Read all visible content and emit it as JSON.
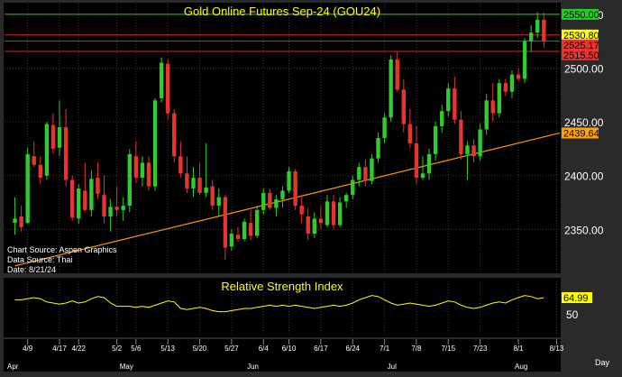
{
  "colors": {
    "background": "#000000",
    "frame": "#1f1f1f",
    "grid": "#3a3a3a",
    "up": "#2ecc2e",
    "down": "#e8342e",
    "axis_text": "#ffffff",
    "title": "#ffff00",
    "trendline": "#ff9900",
    "rsi_line": "#ffff00",
    "level_green": "#22cc22",
    "level_red": "#dd2222",
    "label_green_bg": "#22cc22",
    "label_yellow_bg": "#ffff00",
    "label_red_bg": "#e8342e",
    "label_orange_bg": "#ffa500"
  },
  "chart_data": [
    {
      "type": "candlestick",
      "title": "Gold Online Futures Sep-24 (GOU24)",
      "ylim": [
        2310,
        2560
      ],
      "y_ticks": [
        2350,
        2400,
        2450,
        2500,
        2550
      ],
      "y_tick_labels": [
        "2350.00",
        "2400.00",
        "2450.00",
        "2500.00",
        "2550.00"
      ],
      "grid": true,
      "horizontal_levels": [
        {
          "value": 2550.0,
          "label": "2550.00",
          "color": "green"
        },
        {
          "value": 2530.8,
          "label": "2530.80",
          "color": "yellow"
        },
        {
          "value": 2525.17,
          "label": "2525.17",
          "color": "red"
        },
        {
          "value": 2515.5,
          "label": "2515.50",
          "color": "red"
        }
      ],
      "trendline": {
        "start": [
          0,
          2316
        ],
        "end": [
          88,
          2439.64
        ],
        "label": "2439.64"
      },
      "info_lines": [
        "Chart Source: Aspen Graphics",
        "Data Source: Thai",
        "Date: 8/21/24"
      ],
      "candles": [
        {
          "o": 2356,
          "h": 2380,
          "l": 2345,
          "c": 2360
        },
        {
          "o": 2362,
          "h": 2372,
          "l": 2348,
          "c": 2352
        },
        {
          "o": 2356,
          "h": 2426,
          "l": 2355,
          "c": 2420
        },
        {
          "o": 2418,
          "h": 2432,
          "l": 2408,
          "c": 2410
        },
        {
          "o": 2410,
          "h": 2418,
          "l": 2392,
          "c": 2398
        },
        {
          "o": 2400,
          "h": 2450,
          "l": 2396,
          "c": 2448
        },
        {
          "o": 2447,
          "h": 2458,
          "l": 2420,
          "c": 2425
        },
        {
          "o": 2426,
          "h": 2470,
          "l": 2418,
          "c": 2445
        },
        {
          "o": 2445,
          "h": 2462,
          "l": 2390,
          "c": 2396
        },
        {
          "o": 2396,
          "h": 2400,
          "l": 2358,
          "c": 2361
        },
        {
          "o": 2360,
          "h": 2392,
          "l": 2355,
          "c": 2388
        },
        {
          "o": 2386,
          "h": 2412,
          "l": 2366,
          "c": 2368
        },
        {
          "o": 2368,
          "h": 2405,
          "l": 2362,
          "c": 2397
        },
        {
          "o": 2398,
          "h": 2412,
          "l": 2378,
          "c": 2383
        },
        {
          "o": 2382,
          "h": 2400,
          "l": 2356,
          "c": 2362
        },
        {
          "o": 2362,
          "h": 2378,
          "l": 2348,
          "c": 2371
        },
        {
          "o": 2371,
          "h": 2390,
          "l": 2362,
          "c": 2368
        },
        {
          "o": 2368,
          "h": 2380,
          "l": 2358,
          "c": 2372
        },
        {
          "o": 2372,
          "h": 2425,
          "l": 2366,
          "c": 2420
        },
        {
          "o": 2418,
          "h": 2432,
          "l": 2393,
          "c": 2398
        },
        {
          "o": 2398,
          "h": 2418,
          "l": 2390,
          "c": 2412
        },
        {
          "o": 2412,
          "h": 2418,
          "l": 2386,
          "c": 2390
        },
        {
          "o": 2390,
          "h": 2472,
          "l": 2386,
          "c": 2470
        },
        {
          "o": 2472,
          "h": 2510,
          "l": 2468,
          "c": 2505
        },
        {
          "o": 2504,
          "h": 2508,
          "l": 2452,
          "c": 2458
        },
        {
          "o": 2458,
          "h": 2462,
          "l": 2412,
          "c": 2418
        },
        {
          "o": 2418,
          "h": 2432,
          "l": 2398,
          "c": 2402
        },
        {
          "o": 2402,
          "h": 2418,
          "l": 2384,
          "c": 2388
        },
        {
          "o": 2388,
          "h": 2408,
          "l": 2380,
          "c": 2398
        },
        {
          "o": 2398,
          "h": 2412,
          "l": 2382,
          "c": 2384
        },
        {
          "o": 2384,
          "h": 2430,
          "l": 2380,
          "c": 2389
        },
        {
          "o": 2390,
          "h": 2396,
          "l": 2368,
          "c": 2372
        },
        {
          "o": 2372,
          "h": 2388,
          "l": 2362,
          "c": 2380
        },
        {
          "o": 2380,
          "h": 2382,
          "l": 2322,
          "c": 2333
        },
        {
          "o": 2334,
          "h": 2350,
          "l": 2330,
          "c": 2346
        },
        {
          "o": 2345,
          "h": 2352,
          "l": 2338,
          "c": 2341
        },
        {
          "o": 2341,
          "h": 2360,
          "l": 2339,
          "c": 2357
        },
        {
          "o": 2356,
          "h": 2368,
          "l": 2340,
          "c": 2344
        },
        {
          "o": 2344,
          "h": 2372,
          "l": 2342,
          "c": 2368
        },
        {
          "o": 2368,
          "h": 2388,
          "l": 2364,
          "c": 2384
        },
        {
          "o": 2384,
          "h": 2388,
          "l": 2368,
          "c": 2370
        },
        {
          "o": 2370,
          "h": 2382,
          "l": 2362,
          "c": 2378
        },
        {
          "o": 2378,
          "h": 2390,
          "l": 2370,
          "c": 2386
        },
        {
          "o": 2386,
          "h": 2408,
          "l": 2384,
          "c": 2404
        },
        {
          "o": 2404,
          "h": 2406,
          "l": 2368,
          "c": 2372
        },
        {
          "o": 2372,
          "h": 2382,
          "l": 2356,
          "c": 2364
        },
        {
          "o": 2362,
          "h": 2370,
          "l": 2340,
          "c": 2346
        },
        {
          "o": 2346,
          "h": 2366,
          "l": 2342,
          "c": 2360
        },
        {
          "o": 2360,
          "h": 2372,
          "l": 2350,
          "c": 2356
        },
        {
          "o": 2354,
          "h": 2382,
          "l": 2352,
          "c": 2376
        },
        {
          "o": 2376,
          "h": 2382,
          "l": 2350,
          "c": 2354
        },
        {
          "o": 2354,
          "h": 2380,
          "l": 2352,
          "c": 2375
        },
        {
          "o": 2376,
          "h": 2384,
          "l": 2370,
          "c": 2382
        },
        {
          "o": 2382,
          "h": 2400,
          "l": 2378,
          "c": 2396
        },
        {
          "o": 2396,
          "h": 2412,
          "l": 2390,
          "c": 2408
        },
        {
          "o": 2408,
          "h": 2415,
          "l": 2390,
          "c": 2395
        },
        {
          "o": 2395,
          "h": 2420,
          "l": 2392,
          "c": 2416
        },
        {
          "o": 2416,
          "h": 2440,
          "l": 2412,
          "c": 2435
        },
        {
          "o": 2435,
          "h": 2458,
          "l": 2430,
          "c": 2454
        },
        {
          "o": 2454,
          "h": 2512,
          "l": 2450,
          "c": 2508
        },
        {
          "o": 2508,
          "h": 2515,
          "l": 2478,
          "c": 2480
        },
        {
          "o": 2480,
          "h": 2490,
          "l": 2440,
          "c": 2448
        },
        {
          "o": 2448,
          "h": 2462,
          "l": 2426,
          "c": 2430
        },
        {
          "o": 2430,
          "h": 2446,
          "l": 2392,
          "c": 2398
        },
        {
          "o": 2398,
          "h": 2418,
          "l": 2396,
          "c": 2402
        },
        {
          "o": 2402,
          "h": 2425,
          "l": 2396,
          "c": 2420
        },
        {
          "o": 2420,
          "h": 2450,
          "l": 2414,
          "c": 2446
        },
        {
          "o": 2446,
          "h": 2466,
          "l": 2440,
          "c": 2460
        },
        {
          "o": 2460,
          "h": 2486,
          "l": 2455,
          "c": 2481
        },
        {
          "o": 2481,
          "h": 2492,
          "l": 2448,
          "c": 2452
        },
        {
          "o": 2452,
          "h": 2460,
          "l": 2415,
          "c": 2420
        },
        {
          "o": 2420,
          "h": 2432,
          "l": 2396,
          "c": 2428
        },
        {
          "o": 2428,
          "h": 2434,
          "l": 2412,
          "c": 2418
        },
        {
          "o": 2418,
          "h": 2448,
          "l": 2414,
          "c": 2443
        },
        {
          "o": 2443,
          "h": 2476,
          "l": 2438,
          "c": 2470
        },
        {
          "o": 2470,
          "h": 2486,
          "l": 2450,
          "c": 2458
        },
        {
          "o": 2458,
          "h": 2490,
          "l": 2454,
          "c": 2486
        },
        {
          "o": 2486,
          "h": 2490,
          "l": 2474,
          "c": 2478
        },
        {
          "o": 2478,
          "h": 2498,
          "l": 2472,
          "c": 2494
        },
        {
          "o": 2494,
          "h": 2500,
          "l": 2488,
          "c": 2490
        },
        {
          "o": 2490,
          "h": 2528,
          "l": 2486,
          "c": 2525
        },
        {
          "o": 2525,
          "h": 2540,
          "l": 2515,
          "c": 2533
        },
        {
          "o": 2533,
          "h": 2552,
          "l": 2528,
          "c": 2545
        },
        {
          "o": 2545,
          "h": 2552,
          "l": 2519,
          "c": 2525
        }
      ]
    },
    {
      "type": "line",
      "title": "Relative Strength Index",
      "ylim": [
        30,
        80
      ],
      "y_ticks": [
        50
      ],
      "y_tick_labels": [
        "50"
      ],
      "current_label": "64.99",
      "values": [
        63,
        63,
        64,
        65,
        64,
        61,
        60,
        59,
        60,
        62,
        60,
        61,
        64,
        66,
        65,
        60,
        57,
        57,
        57,
        56,
        57,
        56,
        58,
        60,
        62,
        61,
        55,
        54,
        55,
        56,
        55,
        53,
        52,
        52,
        53,
        54,
        55,
        55,
        56,
        57,
        58,
        57,
        58,
        57,
        58,
        57,
        56,
        55,
        56,
        57,
        58,
        57,
        58,
        60,
        63,
        65,
        67,
        66,
        63,
        60,
        58,
        59,
        60,
        59,
        58,
        57,
        58,
        60,
        62,
        61,
        58,
        56,
        55,
        56,
        58,
        60,
        61,
        60,
        63,
        65,
        67,
        66,
        64,
        65
      ]
    }
  ],
  "x_axis": {
    "tick_labels": [
      "4/9",
      "4/17",
      "4/22",
      "5/2",
      "5/6",
      "5/13",
      "5/20",
      "5/27",
      "6/4",
      "6/10",
      "6/17",
      "6/24",
      "7/1",
      "7/8",
      "7/15",
      "7/23",
      "8/1",
      "8/13"
    ],
    "tick_indices": [
      2,
      7,
      10,
      16,
      19,
      24,
      29,
      34,
      39,
      43,
      48,
      53,
      58,
      63,
      68,
      73,
      79,
      85
    ],
    "month_labels": [
      "Apr",
      "May",
      "Jun",
      "Jul",
      "Aug"
    ],
    "month_indices": [
      0,
      17,
      37,
      59,
      79
    ],
    "period_label": "Day"
  }
}
